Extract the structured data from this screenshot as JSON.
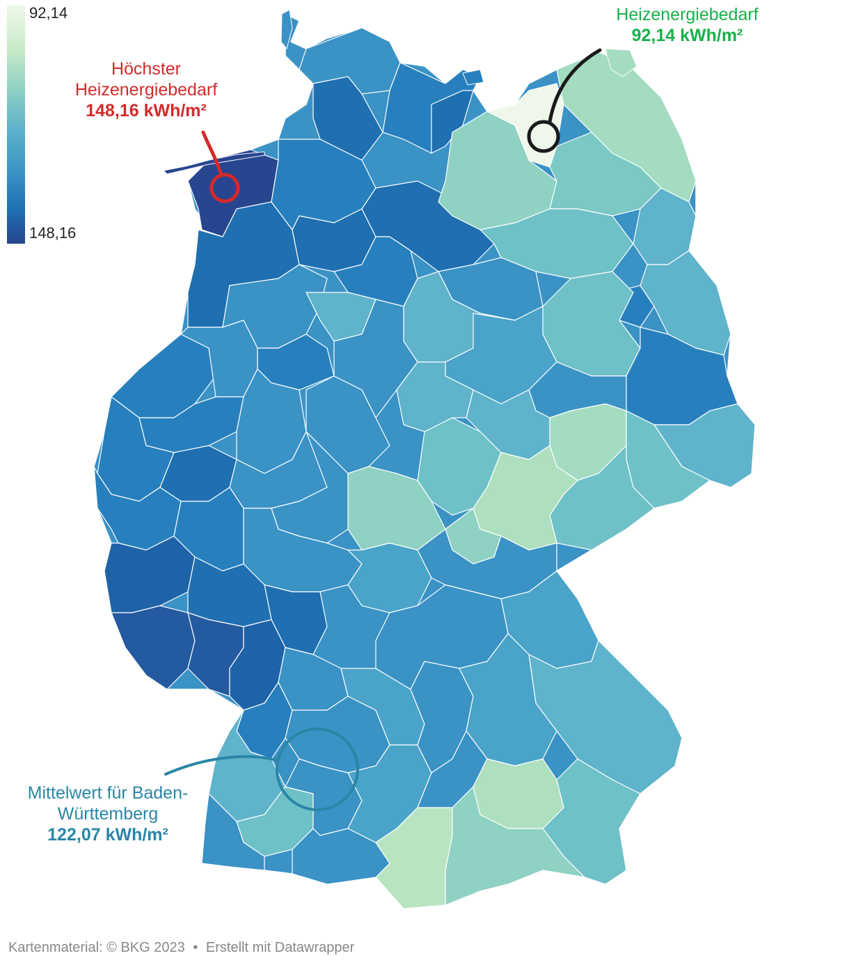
{
  "legend": {
    "max_label": "92,14",
    "min_label": "148,16",
    "color_top": "#eef7e9",
    "color_bottom": "#27468f",
    "stops": [
      "#eef7e9",
      "#c9ebc9",
      "#8fd1c3",
      "#5fb3ca",
      "#3a92c5",
      "#1f6fb1",
      "#27468f"
    ]
  },
  "annotations": {
    "highest": {
      "line1": "Höchster",
      "line2": "Heizenergiebedarf",
      "value": "148,16 kWh/m²",
      "color": "#d42a2a"
    },
    "lowest": {
      "line1": "Heizenergiebedarf",
      "value": "92,14 kWh/m²",
      "color": "#19b04a"
    },
    "bw_mean": {
      "line1": "Mittelwert für Baden-",
      "line2": "Württemberg",
      "value": "122,07 kWh/m²",
      "color": "#2a86a6"
    }
  },
  "footer": {
    "map_credit": "Kartenmaterial: © BKG 2023",
    "separator": "•",
    "tool_credit": "Erstellt mit Datawrapper"
  },
  "map": {
    "border_color": "#ffffff",
    "region_colors": {
      "north_sea_coast": "#3a92c5",
      "leer_emsland": "#27468f",
      "northwest": "#1f6fb1",
      "mecklenburg_west": "#8fd1c3",
      "rostock": "#eef7e9",
      "vorpommern": "#a3dcc0",
      "brandenburg": "#6fc1c8",
      "sachsen_east": "#2780bd",
      "thueringen": "#aedfbe",
      "rheinland_pfalz": "#1e63a8",
      "saarland": "#245a9f",
      "bayern_south": "#b8e4c2",
      "bayern_east": "#5fb3ca",
      "central": "#3a92c5"
    }
  }
}
